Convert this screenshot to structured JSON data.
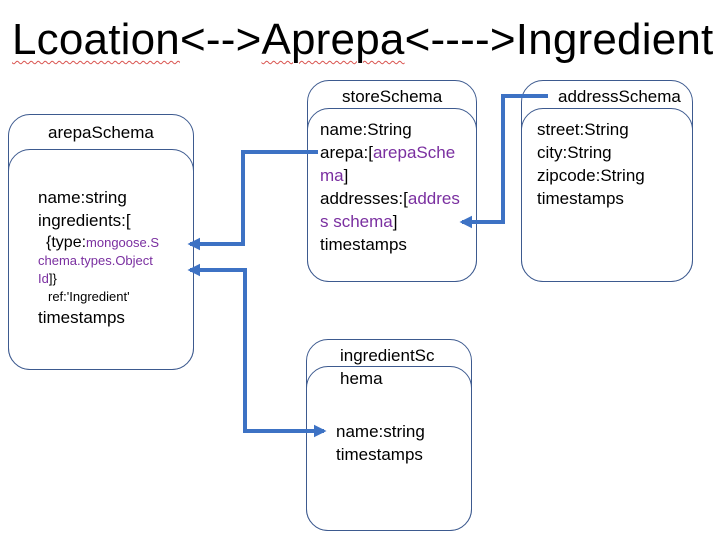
{
  "title": {
    "word1": "Lcoation",
    "arrow1": "<-->",
    "word2": "Aprepa",
    "arrow2": "<---->",
    "word3": "Ingredient"
  },
  "arepa_schema": {
    "header": "arepaSchema",
    "name_line": "name:string",
    "ingredients_line": "ingredients:[",
    "type_open": "{type:",
    "type_line1": "mongoose.S",
    "type_line2": "chema.types.Object",
    "type_line3": "Id",
    "type_close": "]}",
    "ref_line": "ref:'Ingredient'",
    "timestamps": "timestamps"
  },
  "store_schema": {
    "header": "storeSchema",
    "name_line": "name:String",
    "arepa_prefix": "arepa:[",
    "arepa_ref1": "arepaSche",
    "arepa_ref2": "ma",
    "arepa_close": "]",
    "addresses_prefix": "addresses:[",
    "addresses_ref1": "addres",
    "addresses_ref2": "s schema",
    "addresses_close": "]",
    "timestamps": "timestamps"
  },
  "address_schema": {
    "header": "addressSchema",
    "street_line": "street:String",
    "city_line": "city:String",
    "zipcode_line": "zipcode:String",
    "timestamps": "timestamps"
  },
  "ingredient_schema": {
    "header1": "ingredientSc",
    "header2": "hema",
    "name_line": "name:string",
    "timestamps": "timestamps"
  },
  "colors": {
    "connector": "#3d72c4",
    "card_border": "#3d5a8f",
    "type_reference": "#7a2fa0",
    "spellcheck": "#d9534f"
  }
}
